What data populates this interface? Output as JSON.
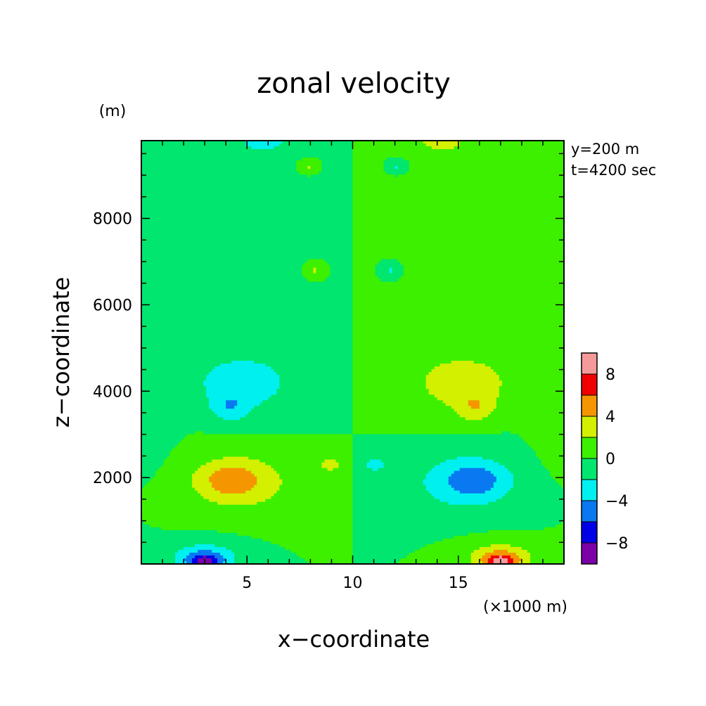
{
  "chart_data": {
    "type": "heatmap",
    "title": "zonal velocity",
    "xlabel": "x−coordinate",
    "ylabel": "z−coordinate",
    "x_unit": "(×1000 m)",
    "y_unit": "(m)",
    "annotations": [
      "y=200 m",
      "t=4200 sec"
    ],
    "xlim": [
      0,
      20
    ],
    "ylim": [
      0,
      9800
    ],
    "x_ticks": [
      5,
      10,
      15
    ],
    "x_tick_labels": [
      "5",
      "10",
      "15"
    ],
    "y_ticks": [
      2000,
      4000,
      6000,
      8000
    ],
    "y_tick_labels": [
      "2000",
      "4000",
      "6000",
      "8000"
    ],
    "colorbar": {
      "levels": [
        -10,
        -8,
        -6,
        -4,
        -2,
        0,
        2,
        4,
        6,
        8,
        10
      ],
      "tick_labels": [
        "-8",
        "-4",
        "0",
        "4",
        "8"
      ],
      "tick_values": [
        -8,
        -4,
        0,
        4,
        8
      ],
      "colors": [
        "#7b00a8",
        "#0000e6",
        "#0a78f0",
        "#00f0f0",
        "#00e66e",
        "#3cf000",
        "#d2f000",
        "#f59600",
        "#f00000",
        "#f59a9a"
      ]
    },
    "features": [
      {
        "xc": 4.8,
        "zc": 4200,
        "rx": 2.6,
        "rz": 700,
        "amp": -3.2
      },
      {
        "xc": 4.2,
        "zc": 3600,
        "rx": 0.9,
        "rz": 330,
        "amp": -2.6
      },
      {
        "xc": 15.2,
        "zc": 4200,
        "rx": 2.6,
        "rz": 700,
        "amp": 3.2
      },
      {
        "xc": 15.8,
        "zc": 3600,
        "rx": 0.9,
        "rz": 330,
        "amp": 2.6
      },
      {
        "xc": 4.6,
        "zc": 1900,
        "rx": 2.6,
        "rz": 680,
        "amp": 3.6
      },
      {
        "xc": 4.2,
        "zc": 1950,
        "rx": 1.2,
        "rz": 350,
        "amp": 2.4
      },
      {
        "xc": 15.4,
        "zc": 1900,
        "rx": 2.6,
        "rz": 680,
        "amp": -3.6
      },
      {
        "xc": 15.8,
        "zc": 1950,
        "rx": 1.2,
        "rz": 350,
        "amp": -2.4
      },
      {
        "xc": 3.0,
        "zc": 120,
        "rx": 1.6,
        "rz": 360,
        "amp": -4.5
      },
      {
        "xc": 3.0,
        "zc": 60,
        "rx": 0.7,
        "rz": 160,
        "amp": -5.5
      },
      {
        "xc": 17.0,
        "zc": 120,
        "rx": 1.6,
        "rz": 360,
        "amp": 4.5
      },
      {
        "xc": 17.0,
        "zc": 60,
        "rx": 0.7,
        "rz": 160,
        "amp": 5.5
      },
      {
        "xc": 5.8,
        "zc": 9800,
        "rx": 1.3,
        "rz": 280,
        "amp": -2.9
      },
      {
        "xc": 14.2,
        "zc": 9800,
        "rx": 1.3,
        "rz": 280,
        "amp": 2.9
      },
      {
        "xc": 4.6,
        "zc": 7600,
        "rx": 3.8,
        "rz": 1700,
        "amp": -1.2
      },
      {
        "xc": 15.4,
        "zc": 7600,
        "rx": 3.8,
        "rz": 1700,
        "amp": 1.2
      },
      {
        "xc": 8.2,
        "zc": 6800,
        "rx": 0.45,
        "rz": 200,
        "amp": 2.6
      },
      {
        "xc": 11.8,
        "zc": 6800,
        "rx": 0.45,
        "rz": 200,
        "amp": -2.6
      },
      {
        "xc": 7.9,
        "zc": 9200,
        "rx": 0.4,
        "rz": 150,
        "amp": 2.4
      },
      {
        "xc": 12.1,
        "zc": 9200,
        "rx": 0.4,
        "rz": 150,
        "amp": -2.4
      },
      {
        "xc": 9.0,
        "zc": 2300,
        "rx": 0.8,
        "rz": 230,
        "amp": 2.4
      },
      {
        "xc": 11.0,
        "zc": 2300,
        "rx": 0.8,
        "rz": 230,
        "amp": -2.4
      },
      {
        "xc": 0.5,
        "zc": 3600,
        "rx": 1.0,
        "rz": 1400,
        "amp": -1.1
      },
      {
        "xc": 19.5,
        "zc": 3600,
        "rx": 1.0,
        "rz": 1400,
        "amp": 1.1
      }
    ]
  }
}
